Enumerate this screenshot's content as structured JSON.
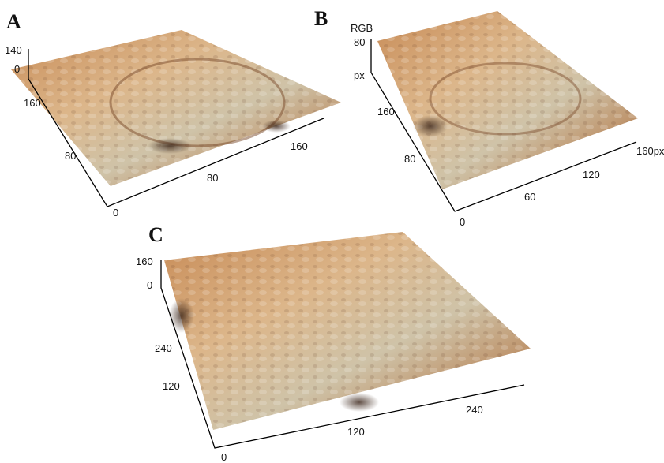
{
  "panels": [
    {
      "label": "A",
      "ticks": [
        "140",
        "0",
        "160",
        "80",
        "0",
        "80",
        "160"
      ]
    },
    {
      "label": "B",
      "ticks": [
        "RGB",
        "80",
        "px",
        "160",
        "80",
        "0",
        "60",
        "120",
        "160px"
      ]
    },
    {
      "label": "C",
      "ticks": [
        "160",
        "0",
        "240",
        "120",
        "0",
        "120",
        "240"
      ]
    }
  ]
}
